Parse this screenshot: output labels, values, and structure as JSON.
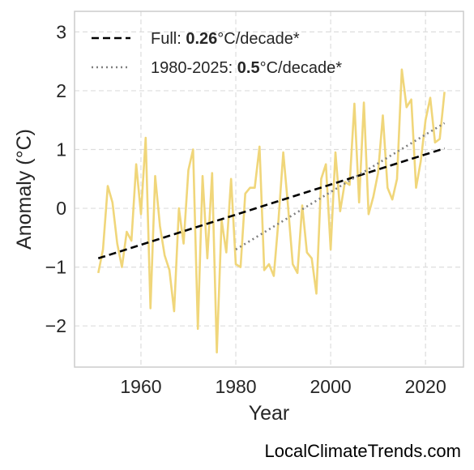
{
  "chart_data": {
    "type": "line",
    "xlabel": "Year",
    "ylabel": "Anomaly (°C)",
    "xlim": [
      1946,
      2028
    ],
    "ylim": [
      -2.7,
      3.35
    ],
    "xticks": [
      1960,
      1980,
      2000,
      2020
    ],
    "yticks": [
      -2,
      -1,
      0,
      1,
      2,
      3
    ],
    "ytick_labels": [
      "−2",
      "−1",
      "0",
      "1",
      "2",
      "3"
    ],
    "grid": true,
    "legend_position": "top-left",
    "series": [
      {
        "style": "line",
        "color": "#f0d67a",
        "x": [
          1951,
          1952,
          1953,
          1954,
          1955,
          1956,
          1957,
          1958,
          1959,
          1960,
          1961,
          1962,
          1963,
          1964,
          1965,
          1966,
          1967,
          1968,
          1969,
          1970,
          1971,
          1972,
          1973,
          1974,
          1975,
          1976,
          1977,
          1978,
          1979,
          1980,
          1981,
          1982,
          1983,
          1984,
          1985,
          1986,
          1987,
          1988,
          1989,
          1990,
          1991,
          1992,
          1993,
          1994,
          1995,
          1996,
          1997,
          1998,
          1999,
          2000,
          2001,
          2002,
          2003,
          2004,
          2005,
          2006,
          2007,
          2008,
          2009,
          2010,
          2011,
          2012,
          2013,
          2014,
          2015,
          2016,
          2017,
          2018,
          2019,
          2020,
          2021,
          2022,
          2023,
          2024
        ],
        "y": [
          -1.1,
          -0.7,
          0.38,
          0.1,
          -0.6,
          -1.0,
          -0.4,
          -0.55,
          0.75,
          -0.1,
          1.2,
          -1.7,
          0.55,
          -0.3,
          -0.8,
          -1.05,
          -1.75,
          0.0,
          -0.6,
          0.65,
          1.0,
          -2.05,
          0.55,
          -0.85,
          0.6,
          -2.45,
          -0.2,
          -0.75,
          0.5,
          -0.95,
          -1.0,
          0.25,
          0.35,
          0.35,
          1.05,
          -1.05,
          -0.95,
          -1.15,
          -0.2,
          0.95,
          0.05,
          -0.95,
          -1.1,
          0.05,
          -0.75,
          -0.85,
          -1.45,
          0.5,
          0.75,
          -0.7,
          0.95,
          -0.05,
          0.45,
          0.4,
          1.78,
          0.1,
          1.8,
          -0.1,
          0.2,
          0.6,
          1.58,
          0.35,
          0.15,
          0.5,
          2.36,
          1.72,
          1.85,
          0.35,
          0.8,
          1.5,
          1.88,
          1.12,
          1.18,
          1.98
        ]
      },
      {
        "name": "Full",
        "style": "dashed",
        "color": "#000000",
        "x": [
          1951,
          2024
        ],
        "y": [
          -0.85,
          1.02
        ]
      },
      {
        "name": "1980-2025",
        "style": "dotted",
        "color": "#808080",
        "x": [
          1980,
          2024
        ],
        "y": [
          -0.7,
          1.45
        ]
      }
    ],
    "legend": [
      {
        "prefix": "Full: ",
        "value": "0.26",
        "suffix": "°C/decade*",
        "style": "dashed",
        "color": "#000000"
      },
      {
        "prefix": "1980-2025: ",
        "value": "0.5",
        "suffix": "°C/decade*",
        "style": "dotted",
        "color": "#808080"
      }
    ]
  },
  "watermark": "LocalClimateTrends.com"
}
